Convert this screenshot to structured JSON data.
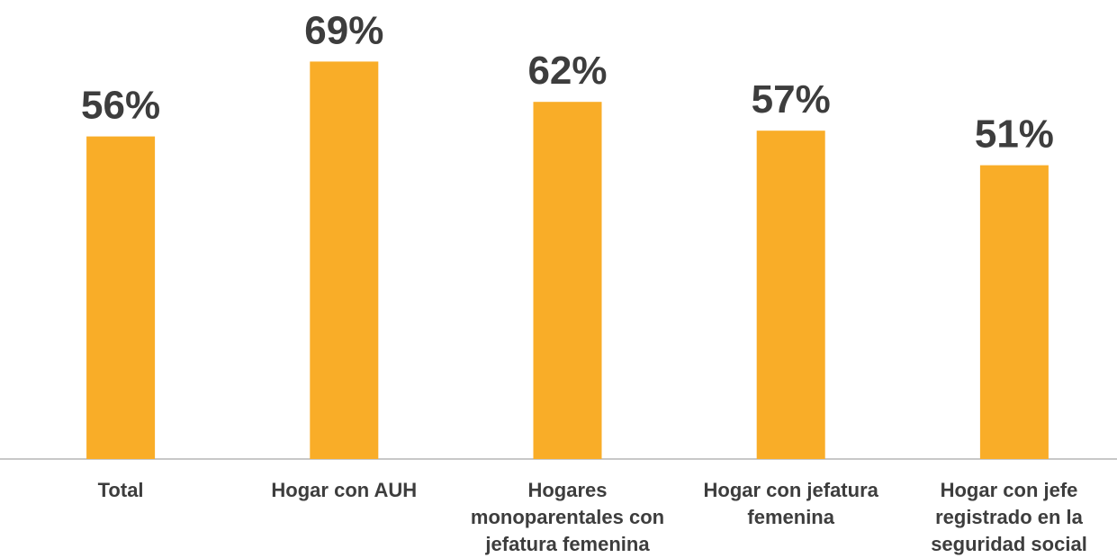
{
  "chart_data": {
    "type": "bar",
    "categories": [
      "Total",
      "Hogar con AUH",
      "Hogares monoparentales con jefatura femenina",
      "Hogar con jefatura femenina",
      "Hogar con jefe registrado en la seguridad social"
    ],
    "values": [
      56,
      69,
      62,
      57,
      51
    ],
    "value_labels": [
      "56%",
      "69%",
      "62%",
      "57%",
      "51%"
    ],
    "color": "#f9ad28"
  }
}
